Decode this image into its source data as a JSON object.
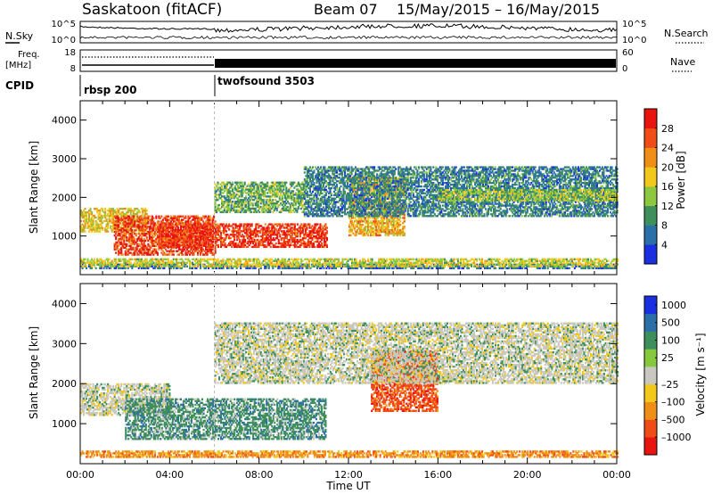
{
  "header": {
    "station": "Saskatoon (fitACF)",
    "beam": "Beam 07",
    "dates": "15/May/2015 – 16/May/2015"
  },
  "panels": {
    "nsky_label": "N.Sky",
    "nsearch_label": "N.Search",
    "left_ticks": [
      "10^5",
      "10^0"
    ],
    "right_ticks": [
      "10^5",
      "10^0"
    ],
    "freq_label": "Freq.",
    "freq_unit": "[MHz]",
    "freq_ticks": [
      "18",
      "8"
    ],
    "nave_label": "Nave",
    "nave_ticks": [
      "60",
      "0"
    ],
    "cpid_label": "CPID",
    "cpid_segments": [
      "rbsp 200",
      "twofsound 3503"
    ]
  },
  "colors": {
    "power": [
      "#1a2fe0",
      "#2b6fa8",
      "#3e8f5c",
      "#8dc840",
      "#f2c81c",
      "#f08f18",
      "#f04c18",
      "#e81410"
    ],
    "velocity": [
      "#1a2fe0",
      "#2b6fa8",
      "#3e8f5c",
      "#86c93c",
      "#c8c8c0",
      "#f2c81c",
      "#f08f18",
      "#f04c18",
      "#e81410"
    ]
  },
  "chart_data": [
    {
      "type": "heatmap",
      "quantity": "power",
      "xlabel": "",
      "ylabel": "Slant Range [km]",
      "xlim": [
        "00:00",
        "24:00"
      ],
      "ylim": [
        0,
        4500
      ],
      "yticks": [
        "1000",
        "2000",
        "3000",
        "4000"
      ],
      "colorbar_label": "Power [dB]",
      "colorbar_ticks": [
        "4",
        "8",
        "12",
        "16",
        "20",
        "24",
        "28"
      ],
      "colorbar_range": [
        0,
        32
      ],
      "regions": [
        {
          "t": [
            0,
            3
          ],
          "r": [
            1100,
            1700
          ],
          "val": 18
        },
        {
          "t": [
            1.5,
            6
          ],
          "r": [
            500,
            1500
          ],
          "val": 27
        },
        {
          "t": [
            3.5,
            11
          ],
          "r": [
            700,
            1300
          ],
          "val": 28
        },
        {
          "t": [
            6,
            10
          ],
          "r": [
            1600,
            2400
          ],
          "val": 12
        },
        {
          "t": [
            12,
            14.5
          ],
          "r": [
            1000,
            2500
          ],
          "val": 20
        },
        {
          "t": [
            10,
            24
          ],
          "r": [
            1500,
            2800
          ],
          "val": 8
        },
        {
          "t": [
            16,
            24
          ],
          "r": [
            1900,
            2200
          ],
          "val": 14
        },
        {
          "t": [
            0,
            24
          ],
          "r": [
            150,
            250
          ],
          "val": 6
        },
        {
          "t": [
            0,
            24
          ],
          "r": [
            200,
            400
          ],
          "val": 16
        }
      ]
    },
    {
      "type": "heatmap",
      "quantity": "velocity",
      "xlabel": "Time UT",
      "ylabel": "Slant Range [km]",
      "xlim": [
        "00:00",
        "24:00"
      ],
      "ylim": [
        0,
        4500
      ],
      "xticks": [
        "00:00",
        "04:00",
        "08:00",
        "12:00",
        "16:00",
        "20:00",
        "00:00"
      ],
      "yticks": [
        "1000",
        "2000",
        "3000",
        "4000"
      ],
      "colorbar_label": "Velocity [m s⁻¹]",
      "colorbar_ticks": [
        "1000",
        "500",
        "100",
        "25",
        "–25",
        "–100",
        "–500",
        "–1000"
      ],
      "regions": [
        {
          "t": [
            0,
            4
          ],
          "r": [
            1200,
            2000
          ],
          "val": "25"
        },
        {
          "t": [
            2,
            11
          ],
          "r": [
            600,
            1600
          ],
          "val": "100"
        },
        {
          "t": [
            13,
            16
          ],
          "r": [
            1300,
            2800
          ],
          "val": "-500"
        },
        {
          "t": [
            6,
            24
          ],
          "r": [
            2000,
            3500
          ],
          "val": "25"
        },
        {
          "t": [
            0,
            24
          ],
          "r": [
            150,
            300
          ],
          "val": "-100"
        }
      ]
    }
  ]
}
